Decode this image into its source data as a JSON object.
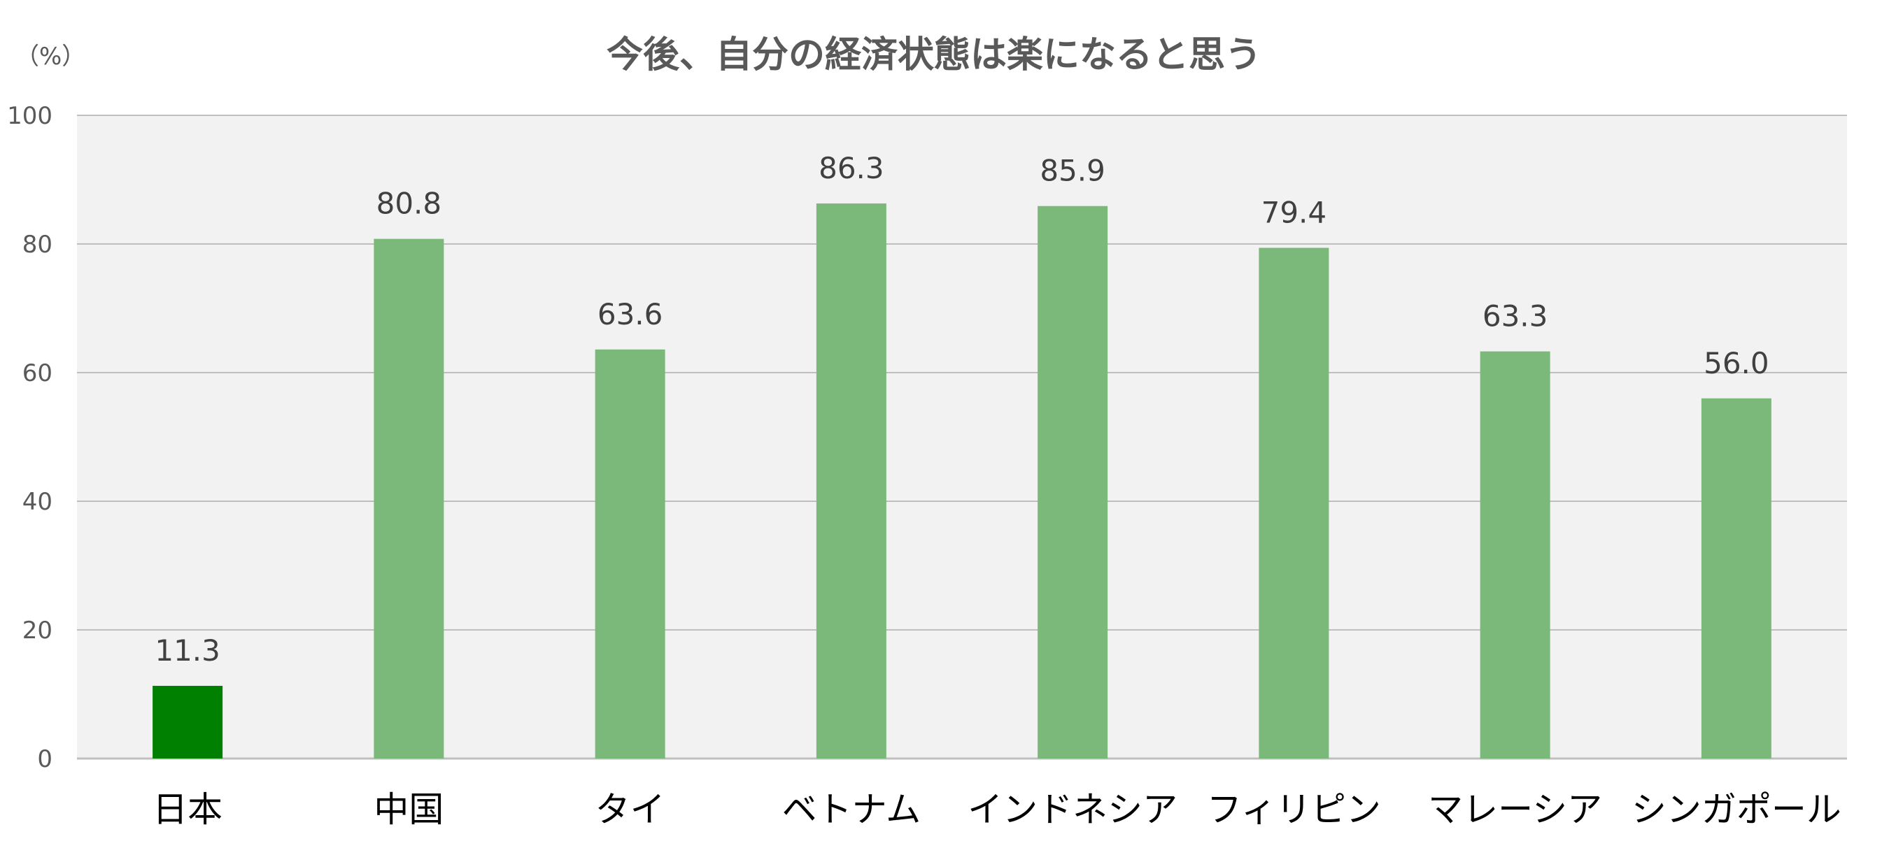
{
  "chart_data": {
    "type": "bar",
    "title": "今後、自分の経済状態は楽になると思う",
    "unit_label": "（%）",
    "categories": [
      "日本",
      "中国",
      "タイ",
      "ベトナム",
      "インドネシア",
      "フィリピン",
      "マレーシア",
      "シンガポール"
    ],
    "values": [
      11.3,
      80.8,
      63.6,
      86.3,
      85.9,
      79.4,
      63.3,
      56.0
    ],
    "value_labels": [
      "11.3",
      "80.8",
      "63.6",
      "86.3",
      "85.9",
      "79.4",
      "63.3",
      "56.0"
    ],
    "ylim": [
      0,
      100
    ],
    "yticks": [
      "0",
      "20",
      "40",
      "60",
      "80",
      "100"
    ],
    "grid": true,
    "legend": "none",
    "colors": {
      "highlight": "#008000",
      "bar": "#7bb97b",
      "plot_background": "#f2f2f2",
      "gridline": "#bfbfbf",
      "text": "#595959"
    },
    "highlight_index": 0
  }
}
